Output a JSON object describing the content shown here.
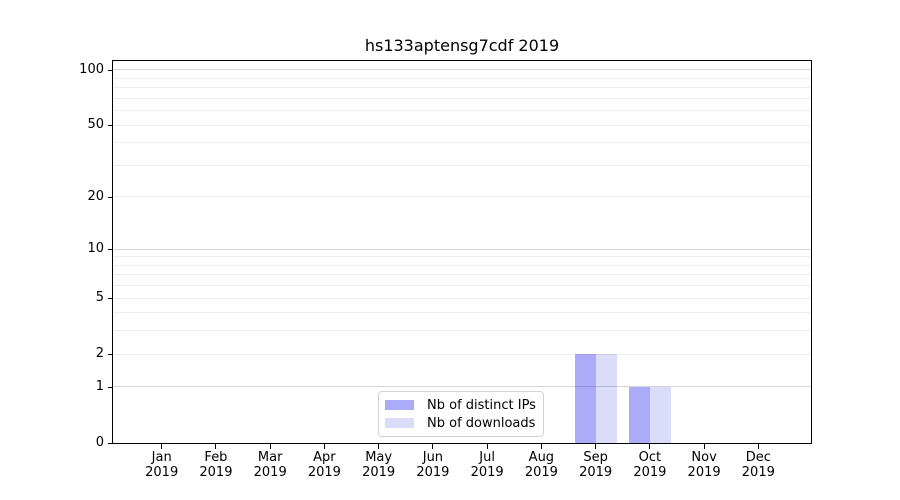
{
  "chart_data": {
    "type": "bar",
    "title": "hs133aptensg7cdf 2019",
    "xlabel": "",
    "ylabel": "",
    "x_tick_year": "2019",
    "categories": [
      "Jan",
      "Feb",
      "Mar",
      "Apr",
      "May",
      "Jun",
      "Jul",
      "Aug",
      "Sep",
      "Oct",
      "Nov",
      "Dec"
    ],
    "series": [
      {
        "name": "Nb of distinct IPs",
        "color": "#ababfa",
        "values": [
          0,
          0,
          0,
          0,
          0,
          0,
          0,
          0,
          2,
          1,
          0,
          0
        ]
      },
      {
        "name": "Nb of downloads",
        "color": "#dbdbfa",
        "values": [
          0,
          0,
          0,
          0,
          0,
          0,
          0,
          0,
          2,
          1,
          0,
          0
        ]
      }
    ],
    "yscale": "log1p",
    "ylim": [
      0,
      112
    ],
    "yticks": [
      100,
      50,
      20,
      10,
      5,
      2,
      1,
      0
    ],
    "gridlines": {
      "major": [
        100,
        10,
        1
      ],
      "minor": [
        90,
        80,
        70,
        60,
        50,
        40,
        30,
        20,
        9,
        8,
        7,
        6,
        5,
        4,
        3,
        2
      ]
    },
    "grid": "on",
    "legend_position": "lower center",
    "colors": {
      "grid_major": "rgba(0,0,0,0.16)",
      "grid_minor": "rgba(0,0,0,0.07)",
      "spine": "#000000",
      "text": "#000000",
      "legend_border": "#d2d2d2",
      "background": "#ffffff"
    }
  }
}
